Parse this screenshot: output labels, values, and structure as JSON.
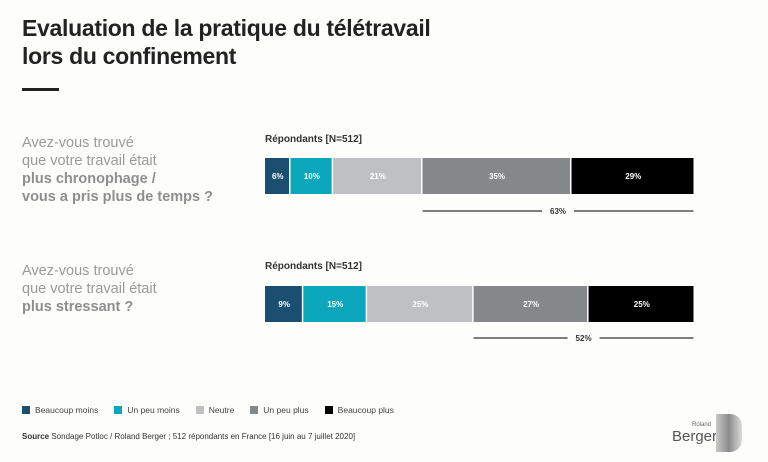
{
  "title_line1": "Evaluation de la pratique du télétravail",
  "title_line2": "lors du confinement",
  "questions": [
    {
      "line1": "Avez-vous trouvé",
      "line2": "que votre travail était",
      "bold1": "plus chronophage /",
      "bold2": "vous a pris plus de temps ?"
    },
    {
      "line1": "Avez-vous trouvé",
      "line2": "que votre travail était",
      "bold1": "plus stressant ?",
      "bold2": ""
    }
  ],
  "respondents_label": "Répondants [N=512]",
  "chart_data": {
    "type": "bar",
    "orientation": "horizontal-stacked-100",
    "categories": [
      "plus chronophage / vous a pris plus de temps",
      "plus stressant"
    ],
    "series": [
      {
        "name": "Beaucoup moins",
        "color": "#1b4f72",
        "values": [
          6,
          9
        ],
        "labels": [
          "6%",
          "9%"
        ]
      },
      {
        "name": "Un peu moins",
        "color": "#0aa7bd",
        "values": [
          10,
          15
        ],
        "labels": [
          "10%",
          "15%"
        ]
      },
      {
        "name": "Neutre",
        "color": "#bfc0c2",
        "values": [
          21,
          25
        ],
        "labels": [
          "21%",
          "25%"
        ]
      },
      {
        "name": "Un peu plus",
        "color": "#858889",
        "values": [
          35,
          27
        ],
        "labels": [
          "35%",
          "27%"
        ]
      },
      {
        "name": "Beaucoup plus",
        "color": "#000000",
        "values": [
          29,
          25
        ],
        "labels": [
          "29%",
          "25%"
        ]
      }
    ],
    "summary": [
      {
        "label": "63%",
        "from_series": 3,
        "to_series": 4
      },
      {
        "label": "52%",
        "from_series": 3,
        "to_series": 4
      }
    ]
  },
  "legend": [
    "Beaucoup moins",
    "Un peu moins",
    "Neutre",
    "Un peu plus",
    "Beaucoup plus"
  ],
  "source_bold": "Source",
  "source_text": " Sondage Potloc / Roland Berger ; 512 répondants en France [16 juin au 7 juillet 2020]",
  "logo": {
    "small": "Roland",
    "word": "Berger"
  }
}
